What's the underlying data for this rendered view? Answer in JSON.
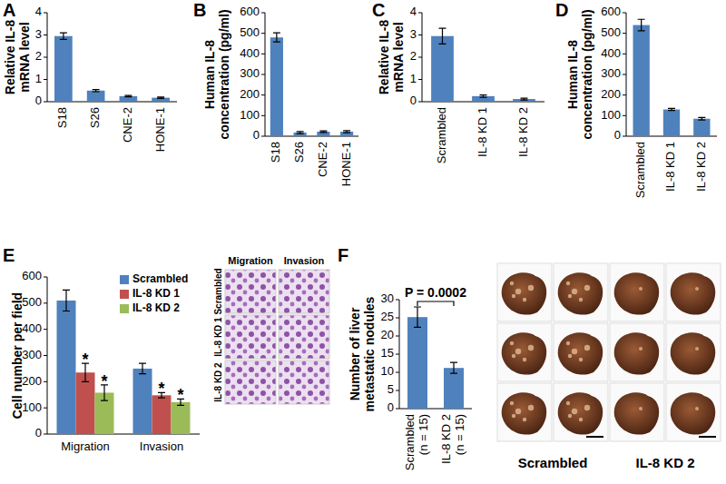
{
  "chart_data": [
    {
      "type": "bar",
      "title": "A",
      "ylabel": "Relative IL-8 mRNA level",
      "categories": [
        "S18",
        "S26",
        "CNE-2",
        "HONE-1"
      ],
      "values": [
        2.95,
        0.5,
        0.25,
        0.18
      ],
      "errors": [
        0.15,
        0.05,
        0.03,
        0.03
      ],
      "color": "#4f81bd",
      "ylim": [
        0,
        4
      ],
      "yticks": [
        0,
        1,
        2,
        3,
        4
      ]
    },
    {
      "type": "bar",
      "title": "B",
      "ylabel": "Human IL-8 concentration (pg/ml)",
      "categories": [
        "S18",
        "S26",
        "CNE-2",
        "HONE-1"
      ],
      "values": [
        480,
        18,
        22,
        22
      ],
      "errors": [
        22,
        5,
        4,
        5
      ],
      "color": "#4f81bd",
      "ylim": [
        0,
        600
      ],
      "yticks": [
        0,
        100,
        200,
        300,
        400,
        500,
        600
      ]
    },
    {
      "type": "bar",
      "title": "C",
      "ylabel": "Relative IL-8 mRNA level",
      "categories": [
        "Scrambled",
        "IL-8 KD 1",
        "IL-8 KD 2"
      ],
      "values": [
        2.95,
        0.25,
        0.12
      ],
      "errors": [
        0.35,
        0.05,
        0.04
      ],
      "color": "#4f81bd",
      "ylim": [
        0,
        4
      ],
      "yticks": [
        0,
        1,
        2,
        3,
        4
      ]
    },
    {
      "type": "bar",
      "title": "D",
      "ylabel": "Human IL-8 concentration (pg/ml)",
      "categories": [
        "Scrambled",
        "IL-8 KD 1",
        "IL-8 KD 2"
      ],
      "values": [
        540,
        130,
        85
      ],
      "errors": [
        28,
        5,
        6
      ],
      "color": "#4f81bd",
      "ylim": [
        0,
        600
      ],
      "yticks": [
        0,
        100,
        200,
        300,
        400,
        500,
        600
      ]
    },
    {
      "type": "bar",
      "title": "E",
      "ylabel": "Cell number per field",
      "categories": [
        "Migration",
        "Invasion"
      ],
      "series": [
        {
          "name": "Scrambled",
          "color": "#4f81bd",
          "values": [
            510,
            250
          ],
          "errors": [
            40,
            20
          ]
        },
        {
          "name": "IL-8 KD 1",
          "color": "#c0504d",
          "values": [
            235,
            148
          ],
          "errors": [
            35,
            10
          ]
        },
        {
          "name": "IL-8 KD 2",
          "color": "#9bbb59",
          "values": [
            158,
            122
          ],
          "errors": [
            30,
            12
          ]
        }
      ],
      "ylim": [
        0,
        600
      ],
      "yticks": [
        0,
        100,
        200,
        300,
        400,
        500,
        600
      ],
      "legend": "top-right",
      "annotations": [
        {
          "text": "*",
          "series": 1,
          "index": 0
        },
        {
          "text": "*",
          "series": 2,
          "index": 0
        },
        {
          "text": "*",
          "series": 1,
          "index": 1
        },
        {
          "text": "*",
          "series": 2,
          "index": 1
        }
      ]
    },
    {
      "type": "bar",
      "title": "F",
      "ylabel": "Number of liver metastatic nodules",
      "categories": [
        "Scrambled (n = 15)",
        "IL-8 KD 2 (n = 15)"
      ],
      "values": [
        25.2,
        11.2
      ],
      "errors": [
        2.8,
        1.5
      ],
      "color": "#4f81bd",
      "ylim": [
        0,
        30
      ],
      "yticks": [
        0,
        5,
        10,
        15,
        20,
        25,
        30
      ],
      "annotations": [
        {
          "text": "P = 0.0002",
          "from": 0,
          "to": 1
        }
      ]
    }
  ],
  "images": {
    "E": {
      "columns": [
        "Migration",
        "Invasion"
      ],
      "rows": [
        "Scrambled",
        "IL-8 KD 1",
        "IL-8 KD 2"
      ]
    },
    "F": {
      "groups": [
        "Scrambled",
        "IL-8 KD 2"
      ]
    }
  }
}
